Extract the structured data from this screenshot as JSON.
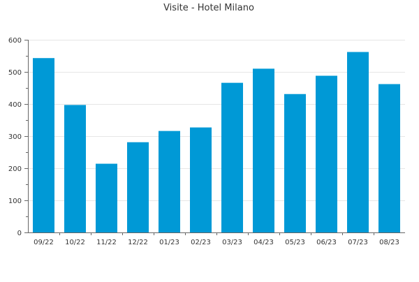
{
  "chart_data": {
    "type": "bar",
    "title": "Visite - Hotel Milano",
    "xlabel": "",
    "ylabel": "",
    "categories": [
      "09/22",
      "10/22",
      "11/22",
      "12/22",
      "01/23",
      "02/23",
      "03/23",
      "04/23",
      "05/23",
      "06/23",
      "07/23",
      "08/23"
    ],
    "values": [
      543,
      397,
      214,
      281,
      316,
      327,
      466,
      510,
      431,
      488,
      562,
      462
    ],
    "ylim": [
      0,
      600
    ],
    "yticks": [
      0,
      100,
      200,
      300,
      400,
      500,
      600
    ],
    "grid": true,
    "legend": "none",
    "colors": {
      "bar": "#0099d6",
      "grid": "#e6e6e6",
      "axis": "#666666",
      "text": "#333333"
    }
  }
}
